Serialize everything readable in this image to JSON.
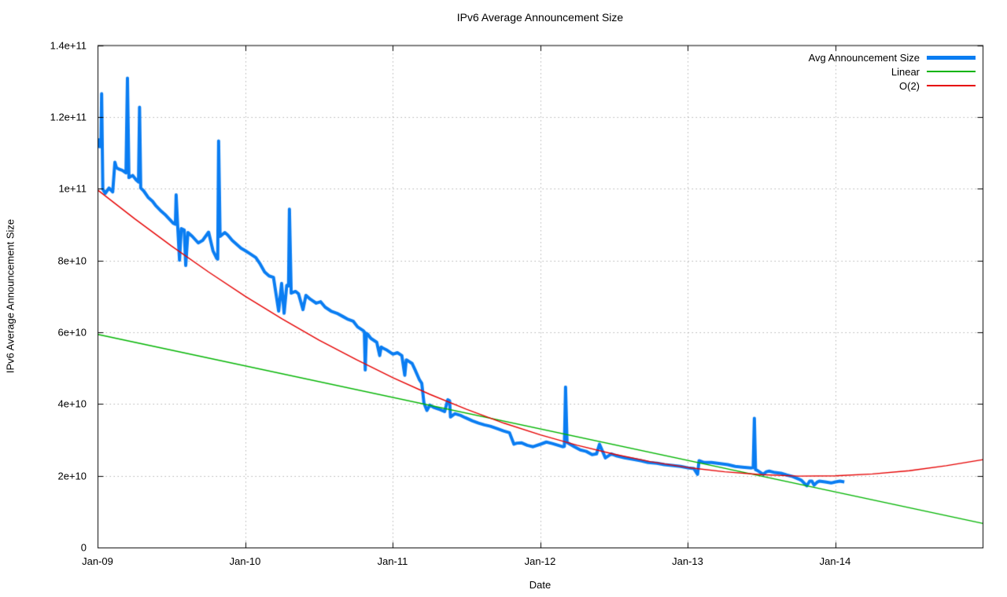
{
  "title": "IPv6 Average Announcement Size",
  "x_axis": {
    "label": "Date",
    "tick_labels": [
      "Jan-09",
      "Jan-10",
      "Jan-11",
      "Jan-12",
      "Jan-13",
      "Jan-14"
    ],
    "tick_positions": [
      2009,
      2010,
      2011,
      2012,
      2013,
      2014
    ],
    "range": [
      2009,
      2015
    ]
  },
  "y_axis": {
    "label": "IPv6 Average Announcement Size",
    "tick_labels": [
      "0",
      "2e+10",
      "4e+10",
      "6e+10",
      "8e+10",
      "1e+11",
      "1.2e+11",
      "1.4e+11"
    ],
    "tick_positions": [
      0,
      20,
      40,
      60,
      80,
      100,
      120,
      140
    ],
    "range": [
      0,
      140000000000
    ]
  },
  "legend": {
    "position": "top-right-inside",
    "items": [
      {
        "label": "Avg Announcement Size",
        "color": "#0a7df2",
        "sample_height": 5
      },
      {
        "label": "Linear",
        "color": "#00b400",
        "sample_height": 2
      },
      {
        "label": "O(2)",
        "color": "#e60000",
        "sample_height": 2
      }
    ]
  },
  "grid_color": "#b4b4b4",
  "chart_data": {
    "type": "line",
    "title": "IPv6 Average Announcement Size",
    "xlabel": "Date",
    "ylabel": "IPv6 Average Announcement Size",
    "xlim": [
      2009,
      2015
    ],
    "ylim": [
      0,
      140000000000
    ],
    "grid": true,
    "legend_position": "top-right",
    "y_value_unit": 1000000000,
    "series": [
      {
        "name": "Avg Announcement Size",
        "color": "#0a7df2",
        "line_width": 4,
        "points": [
          [
            2009.0,
            114.1
          ],
          [
            2009.005,
            113.2
          ],
          [
            2009.012,
            111.8
          ],
          [
            2009.02,
            112.3
          ],
          [
            2009.025,
            126.6
          ],
          [
            2009.033,
            100.0
          ],
          [
            2009.05,
            98.8
          ],
          [
            2009.075,
            100.3
          ],
          [
            2009.1,
            99.2
          ],
          [
            2009.115,
            107.5
          ],
          [
            2009.125,
            106.0
          ],
          [
            2009.14,
            105.6
          ],
          [
            2009.165,
            105.2
          ],
          [
            2009.19,
            104.5
          ],
          [
            2009.2,
            130.9
          ],
          [
            2009.21,
            103.2
          ],
          [
            2009.235,
            103.8
          ],
          [
            2009.26,
            102.5
          ],
          [
            2009.275,
            102.0
          ],
          [
            2009.282,
            122.8
          ],
          [
            2009.29,
            100.3
          ],
          [
            2009.31,
            99.5
          ],
          [
            2009.34,
            97.7
          ],
          [
            2009.37,
            96.6
          ],
          [
            2009.39,
            95.5
          ],
          [
            2009.43,
            93.8
          ],
          [
            2009.46,
            92.7
          ],
          [
            2009.485,
            91.6
          ],
          [
            2009.51,
            90.5
          ],
          [
            2009.525,
            90.2
          ],
          [
            2009.53,
            98.4
          ],
          [
            2009.54,
            90.1
          ],
          [
            2009.553,
            80.2
          ],
          [
            2009.565,
            89.0
          ],
          [
            2009.585,
            88.6
          ],
          [
            2009.595,
            78.7
          ],
          [
            2009.61,
            87.9
          ],
          [
            2009.64,
            86.8
          ],
          [
            2009.68,
            85.0
          ],
          [
            2009.71,
            85.7
          ],
          [
            2009.75,
            88.0
          ],
          [
            2009.78,
            82.8
          ],
          [
            2009.805,
            80.7
          ],
          [
            2009.812,
            80.5
          ],
          [
            2009.818,
            113.4
          ],
          [
            2009.828,
            86.8
          ],
          [
            2009.86,
            87.9
          ],
          [
            2009.88,
            87.2
          ],
          [
            2009.91,
            85.7
          ],
          [
            2009.94,
            84.6
          ],
          [
            2009.97,
            83.5
          ],
          [
            2010.0,
            82.8
          ],
          [
            2010.03,
            82.0
          ],
          [
            2010.07,
            80.9
          ],
          [
            2010.1,
            79.1
          ],
          [
            2010.13,
            76.9
          ],
          [
            2010.16,
            75.8
          ],
          [
            2010.19,
            75.4
          ],
          [
            2010.225,
            66.0
          ],
          [
            2010.245,
            73.7
          ],
          [
            2010.262,
            65.4
          ],
          [
            2010.28,
            73.2
          ],
          [
            2010.292,
            73.0
          ],
          [
            2010.298,
            94.4
          ],
          [
            2010.31,
            71.0
          ],
          [
            2010.34,
            71.5
          ],
          [
            2010.36,
            70.8
          ],
          [
            2010.39,
            66.4
          ],
          [
            2010.41,
            70.4
          ],
          [
            2010.44,
            69.3
          ],
          [
            2010.48,
            68.2
          ],
          [
            2010.51,
            68.6
          ],
          [
            2010.54,
            67.1
          ],
          [
            2010.58,
            66.0
          ],
          [
            2010.62,
            65.4
          ],
          [
            2010.66,
            64.5
          ],
          [
            2010.69,
            63.8
          ],
          [
            2010.73,
            63.2
          ],
          [
            2010.76,
            61.6
          ],
          [
            2010.8,
            60.5
          ],
          [
            2010.806,
            60.2
          ],
          [
            2010.812,
            49.6
          ],
          [
            2010.82,
            59.8
          ],
          [
            2010.83,
            59.5
          ],
          [
            2010.85,
            58.4
          ],
          [
            2010.89,
            57.3
          ],
          [
            2010.91,
            53.6
          ],
          [
            2010.92,
            56.0
          ],
          [
            2010.93,
            55.7
          ],
          [
            2010.96,
            55.1
          ],
          [
            2011.0,
            54.0
          ],
          [
            2011.03,
            54.4
          ],
          [
            2011.06,
            53.6
          ],
          [
            2011.08,
            48.1
          ],
          [
            2011.09,
            52.4
          ],
          [
            2011.1,
            52.2
          ],
          [
            2011.13,
            51.4
          ],
          [
            2011.15,
            49.6
          ],
          [
            2011.18,
            46.8
          ],
          [
            2011.195,
            45.9
          ],
          [
            2011.21,
            40.4
          ],
          [
            2011.23,
            38.3
          ],
          [
            2011.25,
            39.8
          ],
          [
            2011.28,
            39.1
          ],
          [
            2011.31,
            38.7
          ],
          [
            2011.35,
            38.0
          ],
          [
            2011.372,
            41.3
          ],
          [
            2011.384,
            41.0
          ],
          [
            2011.39,
            36.5
          ],
          [
            2011.42,
            37.4
          ],
          [
            2011.46,
            36.9
          ],
          [
            2011.49,
            36.3
          ],
          [
            2011.54,
            35.4
          ],
          [
            2011.58,
            34.8
          ],
          [
            2011.62,
            34.3
          ],
          [
            2011.66,
            33.9
          ],
          [
            2011.71,
            33.2
          ],
          [
            2011.75,
            32.6
          ],
          [
            2011.79,
            32.1
          ],
          [
            2011.82,
            28.9
          ],
          [
            2011.84,
            29.2
          ],
          [
            2011.87,
            29.3
          ],
          [
            2011.91,
            28.6
          ],
          [
            2011.95,
            28.2
          ],
          [
            2012.0,
            28.9
          ],
          [
            2012.04,
            29.5
          ],
          [
            2012.08,
            29.1
          ],
          [
            2012.12,
            28.6
          ],
          [
            2012.15,
            28.2
          ],
          [
            2012.162,
            28.3
          ],
          [
            2012.17,
            44.8
          ],
          [
            2012.18,
            29.4
          ],
          [
            2012.23,
            28.2
          ],
          [
            2012.27,
            27.3
          ],
          [
            2012.31,
            26.9
          ],
          [
            2012.35,
            26.0
          ],
          [
            2012.38,
            26.2
          ],
          [
            2012.4,
            28.9
          ],
          [
            2012.44,
            25.1
          ],
          [
            2012.48,
            26.2
          ],
          [
            2012.52,
            25.6
          ],
          [
            2012.57,
            25.1
          ],
          [
            2012.63,
            24.7
          ],
          [
            2012.68,
            24.3
          ],
          [
            2012.73,
            23.8
          ],
          [
            2012.79,
            23.6
          ],
          [
            2012.84,
            23.2
          ],
          [
            2012.89,
            23.0
          ],
          [
            2012.95,
            22.7
          ],
          [
            2013.0,
            22.3
          ],
          [
            2013.04,
            22.1
          ],
          [
            2013.065,
            20.5
          ],
          [
            2013.075,
            24.3
          ],
          [
            2013.11,
            23.8
          ],
          [
            2013.16,
            23.8
          ],
          [
            2013.2,
            23.6
          ],
          [
            2013.27,
            23.2
          ],
          [
            2013.32,
            22.7
          ],
          [
            2013.37,
            22.5
          ],
          [
            2013.43,
            22.3
          ],
          [
            2013.442,
            22.4
          ],
          [
            2013.45,
            36.1
          ],
          [
            2013.458,
            21.8
          ],
          [
            2013.47,
            21.6
          ],
          [
            2013.51,
            20.5
          ],
          [
            2013.53,
            21.2
          ],
          [
            2013.55,
            21.4
          ],
          [
            2013.59,
            21.0
          ],
          [
            2013.63,
            20.8
          ],
          [
            2013.67,
            20.3
          ],
          [
            2013.71,
            19.9
          ],
          [
            2013.75,
            19.2
          ],
          [
            2013.77,
            18.8
          ],
          [
            2013.805,
            17.3
          ],
          [
            2013.825,
            18.6
          ],
          [
            2013.84,
            18.6
          ],
          [
            2013.855,
            17.5
          ],
          [
            2013.875,
            18.3
          ],
          [
            2013.89,
            18.6
          ],
          [
            2013.93,
            18.4
          ],
          [
            2013.97,
            18.1
          ],
          [
            2014.0,
            18.4
          ],
          [
            2014.03,
            18.6
          ],
          [
            2014.06,
            18.4
          ]
        ]
      },
      {
        "name": "Linear",
        "color": "#00b400",
        "line_width": 1.4,
        "points": [
          [
            2009.0,
            59.5
          ],
          [
            2015.0,
            6.8
          ]
        ]
      },
      {
        "name": "O(2)",
        "color": "#e60000",
        "line_width": 1.4,
        "points": [
          [
            2009.0,
            99.7
          ],
          [
            2009.25,
            91.7
          ],
          [
            2009.5,
            84.1
          ],
          [
            2009.75,
            76.9
          ],
          [
            2010.0,
            70.1
          ],
          [
            2010.25,
            63.8
          ],
          [
            2010.5,
            57.9
          ],
          [
            2010.75,
            52.5
          ],
          [
            2011.0,
            47.4
          ],
          [
            2011.25,
            42.8
          ],
          [
            2011.5,
            38.6
          ],
          [
            2011.75,
            34.8
          ],
          [
            2012.0,
            31.5
          ],
          [
            2012.25,
            28.6
          ],
          [
            2012.5,
            26.1
          ],
          [
            2012.75,
            24.0
          ],
          [
            2013.0,
            22.4
          ],
          [
            2013.25,
            21.2
          ],
          [
            2013.5,
            20.4
          ],
          [
            2013.75,
            20.0
          ],
          [
            2014.0,
            20.1
          ],
          [
            2014.25,
            20.6
          ],
          [
            2014.5,
            21.5
          ],
          [
            2014.75,
            22.9
          ],
          [
            2015.0,
            24.6
          ]
        ]
      }
    ]
  }
}
